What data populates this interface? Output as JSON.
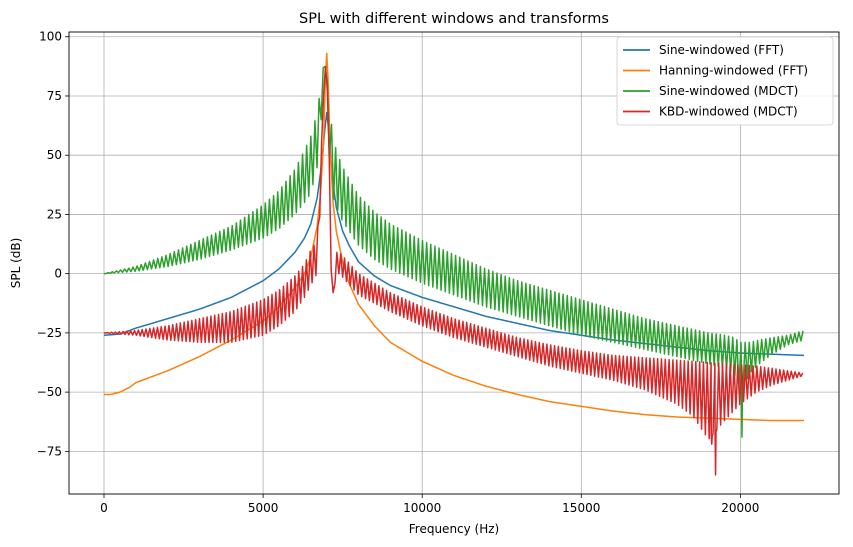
{
  "chart_data": {
    "type": "line",
    "title": "SPL with different windows and transforms",
    "xlabel": "Frequency (Hz)",
    "ylabel": "SPL (dB)",
    "xlim": [
      -1100,
      23100
    ],
    "ylim": [
      -93,
      102
    ],
    "xticks": [
      0,
      5000,
      10000,
      15000,
      20000
    ],
    "yticks": [
      -75,
      -50,
      -25,
      0,
      25,
      50,
      75,
      100
    ],
    "xtick_labels": [
      "0",
      "5000",
      "10000",
      "15000",
      "20000"
    ],
    "ytick_labels": [
      "−75",
      "−50",
      "−25",
      "0",
      "25",
      "50",
      "75",
      "100"
    ],
    "grid": true,
    "legend_position": "top-right",
    "series": [
      {
        "name": "Sine-windowed (FFT)",
        "color": "#1f77b4",
        "ripple": false,
        "x": [
          0,
          500,
          1000,
          2000,
          3000,
          4000,
          5000,
          5500,
          6000,
          6300,
          6500,
          6700,
          6800,
          6900,
          6950,
          7000,
          7050,
          7100,
          7200,
          7300,
          7500,
          7700,
          8000,
          8500,
          9000,
          10000,
          11000,
          12000,
          13000,
          14000,
          15000,
          16000,
          17000,
          18000,
          19000,
          20000,
          21000,
          22000
        ],
        "y": [
          -26,
          -25.5,
          -23,
          -19,
          -15,
          -10,
          -3,
          2,
          9,
          15,
          21,
          32,
          42,
          55,
          62,
          68,
          62,
          52,
          38,
          28,
          18,
          12,
          5,
          -1,
          -5,
          -10,
          -14,
          -18,
          -21,
          -24,
          -26,
          -28,
          -29.5,
          -31,
          -32.5,
          -33.5,
          -34,
          -34.5
        ]
      },
      {
        "name": "Hanning-windowed (FFT)",
        "color": "#ff7f0e",
        "ripple": false,
        "x": [
          0,
          200,
          500,
          800,
          1000,
          2000,
          3000,
          4000,
          5000,
          5500,
          6000,
          6300,
          6500,
          6700,
          6800,
          6900,
          6950,
          7000,
          7050,
          7100,
          7200,
          7300,
          7500,
          7700,
          8000,
          8500,
          9000,
          10000,
          11000,
          12000,
          13000,
          14000,
          15000,
          16000,
          17000,
          18000,
          19000,
          20000,
          21000,
          22000
        ],
        "y": [
          -51,
          -51,
          -50,
          -48,
          -46,
          -41,
          -35,
          -28,
          -20,
          -14,
          -6,
          0,
          7,
          20,
          33,
          55,
          80,
          93,
          80,
          55,
          30,
          18,
          5,
          -4,
          -13,
          -22,
          -29,
          -37,
          -43,
          -47.5,
          -51,
          -54,
          -56,
          -58,
          -59.5,
          -60.5,
          -61,
          -61.5,
          -62,
          -62
        ]
      },
      {
        "name": "Sine-windowed (MDCT)",
        "color": "#2ca02c",
        "ripple": true,
        "period": 130,
        "x": [
          0,
          1000,
          2000,
          3000,
          4000,
          5000,
          5500,
          6000,
          6300,
          6500,
          6700,
          6800,
          6900,
          6950,
          7000,
          7050,
          7100,
          7200,
          7300,
          7500,
          7700,
          8000,
          8500,
          9000,
          10000,
          11000,
          12000,
          13000,
          14000,
          15000,
          16000,
          17000,
          18000,
          19000,
          19500,
          19800,
          20000,
          20300,
          20600,
          21000,
          21500,
          22000
        ],
        "y_upper": [
          0,
          3,
          8,
          14,
          20,
          29,
          35,
          44,
          52,
          58,
          68,
          78,
          88,
          90,
          85,
          75,
          68,
          58,
          52,
          45,
          40,
          33,
          26,
          21,
          14,
          8,
          2,
          -3,
          -7,
          -11,
          -15,
          -19,
          -22,
          -25,
          -26,
          -27,
          -29,
          -29,
          -28,
          -27,
          -26,
          -24
        ],
        "y_lower": [
          0,
          1,
          3,
          6,
          10,
          15,
          19,
          25,
          30,
          34,
          45,
          60,
          80,
          88,
          82,
          60,
          45,
          32,
          28,
          22,
          18,
          12,
          6,
          2,
          -4,
          -9,
          -14,
          -18,
          -22,
          -26,
          -29,
          -32,
          -35,
          -38,
          -40,
          -42,
          -50,
          -42,
          -38,
          -34,
          -30,
          -28
        ],
        "spikes": [
          {
            "x": 20050,
            "y": -69
          }
        ]
      },
      {
        "name": "KBD-windowed (MDCT)",
        "color": "#d62728",
        "ripple": true,
        "period": 120,
        "x": [
          0,
          1000,
          2000,
          3000,
          4000,
          5000,
          5500,
          6000,
          6300,
          6500,
          6600,
          6700,
          6800,
          6900,
          6950,
          7000,
          7050,
          7100,
          7150,
          7200,
          7300,
          7400,
          7600,
          8000,
          9000,
          10000,
          11000,
          12000,
          13000,
          14000,
          15000,
          16000,
          17000,
          18000,
          18500,
          19000,
          19500,
          20000,
          20500,
          21000,
          22000
        ],
        "y_upper": [
          -25,
          -24,
          -22,
          -19,
          -16,
          -11,
          -7,
          -1,
          4,
          10,
          12,
          15,
          40,
          80,
          88,
          85,
          75,
          30,
          0,
          -8,
          9,
          9,
          6,
          0,
          -8,
          -14,
          -19,
          -23,
          -27,
          -30,
          -32.5,
          -34.5,
          -35.5,
          -36.5,
          -37,
          -37.5,
          -38,
          -38.5,
          -39,
          -40,
          -42
        ],
        "y_lower": [
          -25,
          -26,
          -28,
          -29,
          -29,
          -26,
          -22,
          -16,
          -10,
          -5,
          -2,
          0,
          30,
          75,
          85,
          82,
          70,
          20,
          -3,
          -10,
          0,
          0,
          -3,
          -9,
          -16,
          -22,
          -27,
          -31,
          -35,
          -39,
          -42,
          -45,
          -49,
          -55,
          -60,
          -70,
          -62,
          -55,
          -50,
          -47,
          -43
        ],
        "spikes": [
          {
            "x": 19220,
            "y": -85
          },
          {
            "x": 19100,
            "y": -72
          }
        ]
      }
    ]
  }
}
